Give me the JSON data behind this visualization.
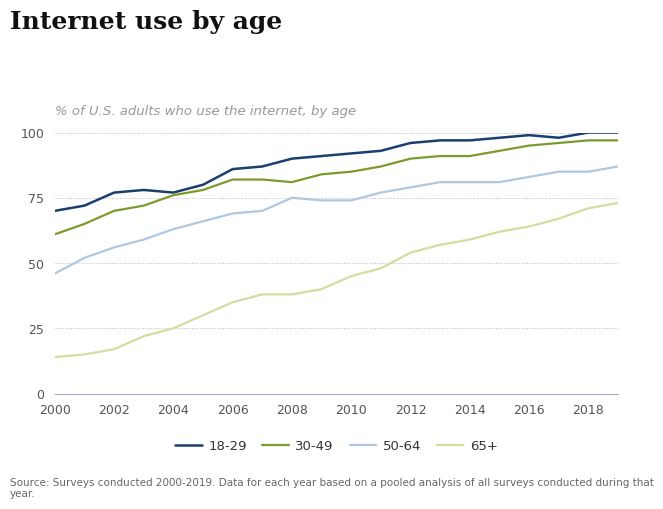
{
  "title": "Internet use by age",
  "subtitle": "% of U.S. adults who use the internet, by age",
  "source_text": "Source: Surveys conducted 2000-2019. Data for each year based on a pooled analysis of all surveys conducted during that\nyear.",
  "years": [
    2000,
    2001,
    2002,
    2003,
    2004,
    2005,
    2006,
    2007,
    2008,
    2009,
    2010,
    2011,
    2012,
    2013,
    2014,
    2015,
    2016,
    2017,
    2018,
    2019
  ],
  "age_18_29": [
    70,
    72,
    77,
    78,
    77,
    80,
    86,
    87,
    90,
    91,
    92,
    93,
    96,
    97,
    97,
    98,
    99,
    98,
    100,
    100
  ],
  "age_30_49": [
    61,
    65,
    70,
    72,
    76,
    78,
    82,
    82,
    81,
    84,
    85,
    87,
    90,
    91,
    91,
    93,
    95,
    96,
    97,
    97
  ],
  "age_50_64": [
    46,
    52,
    56,
    59,
    63,
    66,
    69,
    70,
    75,
    74,
    74,
    77,
    79,
    81,
    81,
    81,
    83,
    85,
    85,
    87
  ],
  "age_65plus": [
    14,
    15,
    17,
    22,
    25,
    30,
    35,
    38,
    38,
    40,
    45,
    48,
    54,
    57,
    59,
    62,
    64,
    67,
    71,
    73
  ],
  "colors": {
    "18-29": "#1a3f6f",
    "30-49": "#7d9a2e",
    "50-64": "#adc8e0",
    "65+": "#d6dba0"
  },
  "legend_labels": [
    "18-29",
    "30-49",
    "50-64",
    "65+"
  ],
  "ylim": [
    0,
    100
  ],
  "xlim": [
    2000,
    2019
  ],
  "yticks": [
    0,
    25,
    50,
    75,
    100
  ],
  "xticks": [
    2000,
    2002,
    2004,
    2006,
    2008,
    2010,
    2012,
    2014,
    2016,
    2018
  ],
  "background_color": "#ffffff",
  "grid_color": "#bbbbbb",
  "bottom_spine_color": "#aaaacc",
  "title_fontsize": 18,
  "subtitle_fontsize": 9.5,
  "source_fontsize": 7.5,
  "axis_fontsize": 9,
  "legend_fontsize": 9.5
}
